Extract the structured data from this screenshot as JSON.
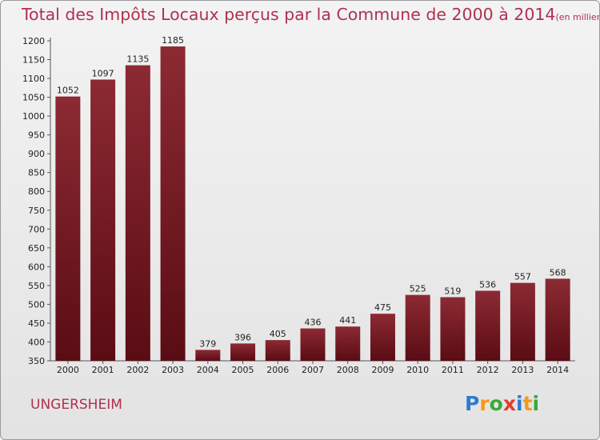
{
  "chart_data": {
    "type": "bar",
    "title": "Total des Impôts Locaux perçus par la Commune de 2000 à 2014",
    "subtitle": "(en milliers d'€)",
    "categories": [
      "2000",
      "2001",
      "2002",
      "2003",
      "2004",
      "2005",
      "2006",
      "2007",
      "2008",
      "2009",
      "2010",
      "2011",
      "2012",
      "2013",
      "2014"
    ],
    "values": [
      1052,
      1097,
      1135,
      1185,
      379,
      396,
      405,
      436,
      441,
      475,
      525,
      519,
      536,
      557,
      568
    ],
    "ylim": [
      350,
      1200
    ],
    "yticks": [
      350,
      400,
      450,
      500,
      550,
      600,
      650,
      700,
      750,
      800,
      850,
      900,
      950,
      1000,
      1050,
      1100,
      1150,
      1200
    ],
    "grid": false,
    "bar_color": "#7a1a24",
    "title_color": "#b03050"
  },
  "footer": {
    "commune": "UNGERSHEIM"
  },
  "logo": {
    "letters": [
      "P",
      "r",
      "o",
      "x",
      "i",
      "t",
      "i"
    ],
    "colors": [
      "#2e7bd0",
      "#f39a1a",
      "#3aaa35",
      "#e53c2e",
      "#2e7bd0",
      "#f39a1a",
      "#3aaa35"
    ]
  }
}
